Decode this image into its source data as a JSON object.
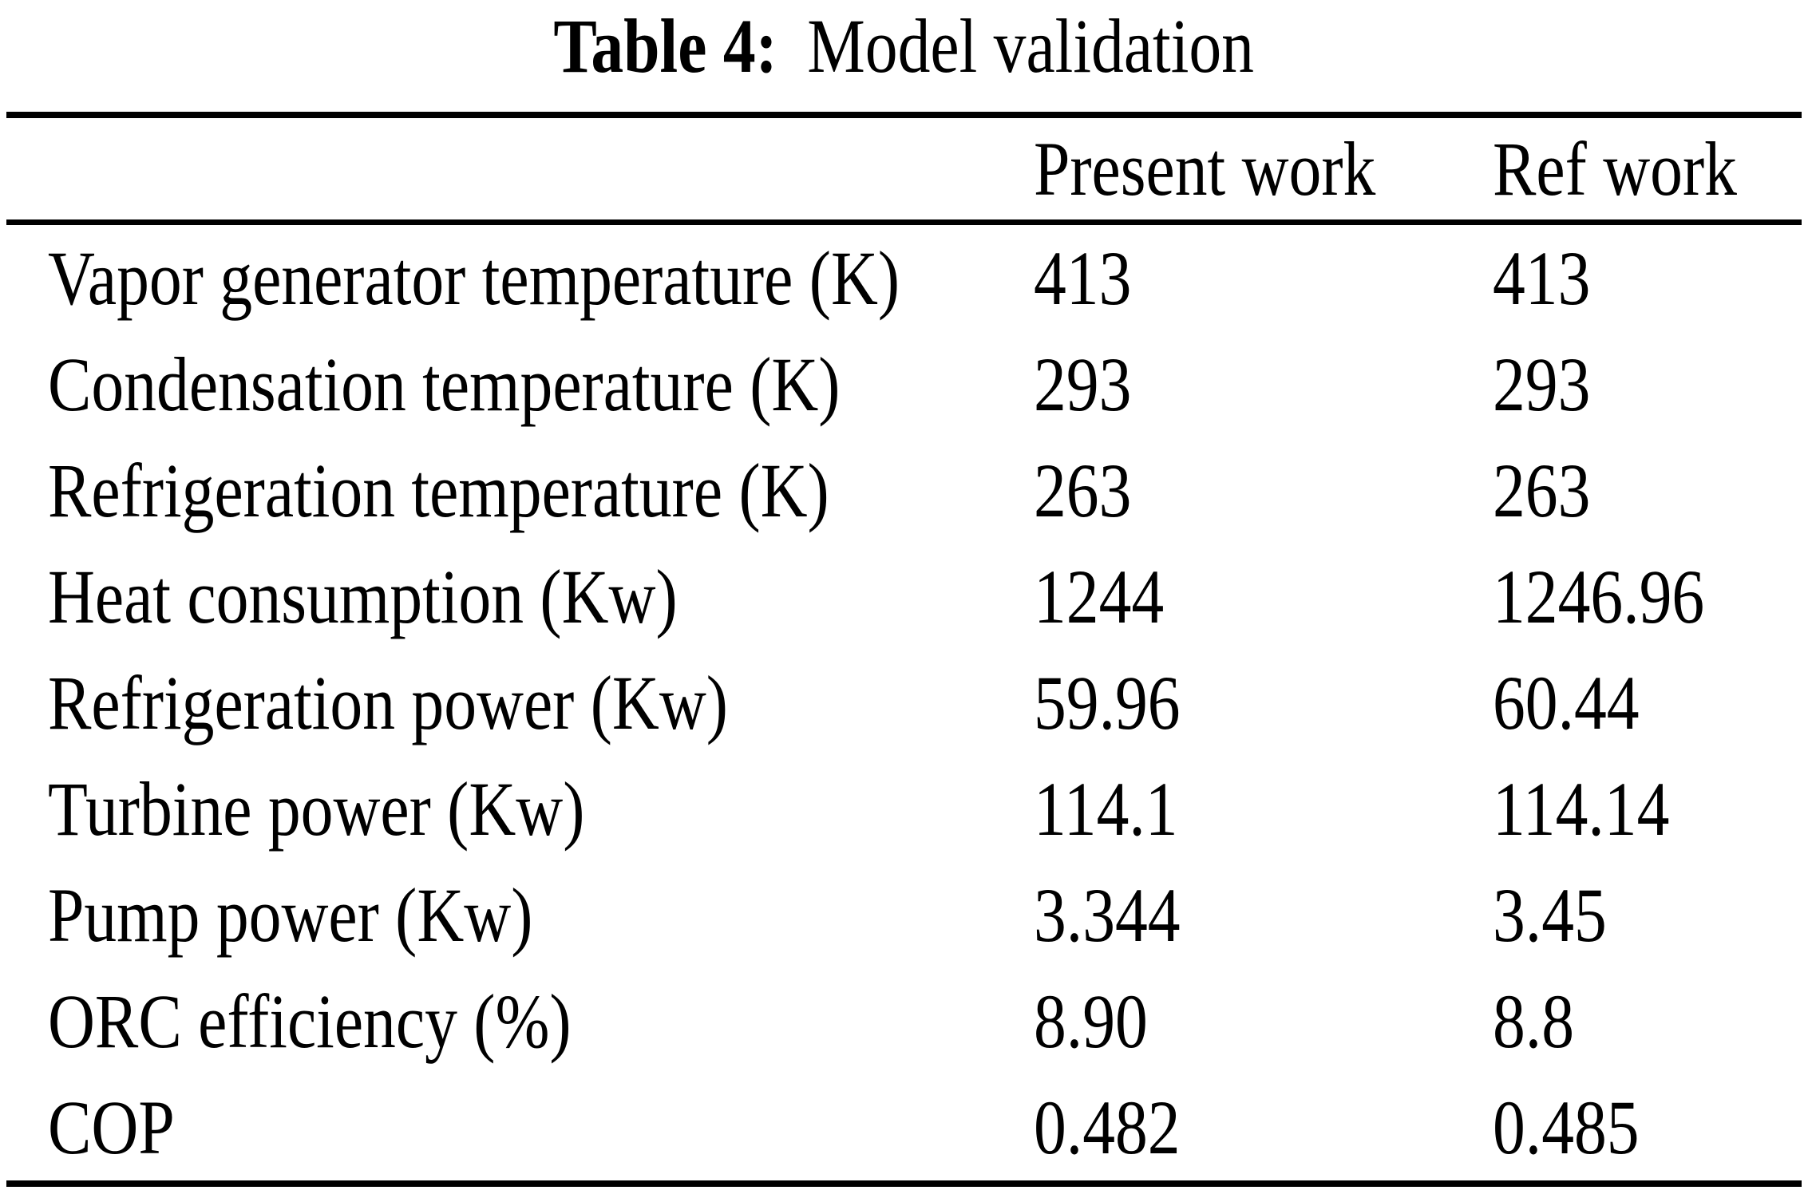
{
  "title": {
    "label": "Table 4:",
    "text": "Model validation"
  },
  "table": {
    "header": {
      "col1": "",
      "col2": "Present work",
      "col3": "Ref work"
    },
    "rows": [
      {
        "label": "Vapor generator temperature (K)",
        "present": "413",
        "ref": "413"
      },
      {
        "label": "Condensation temperature (K)",
        "present": "293",
        "ref": "293"
      },
      {
        "label": "Refrigeration temperature (K)",
        "present": "263",
        "ref": "263"
      },
      {
        "label": "Heat consumption (Kw)",
        "present": "1244",
        "ref": "1246.96"
      },
      {
        "label": "Refrigeration power (Kw)",
        "present": "59.96",
        "ref": "60.44"
      },
      {
        "label": "Turbine power (Kw)",
        "present": "114.1",
        "ref": "114.14"
      },
      {
        "label": "Pump power (Kw)",
        "present": "3.344",
        "ref": "3.45"
      },
      {
        "label": "ORC efficiency (%)",
        "present": "8.90",
        "ref": "8.8"
      },
      {
        "label": "COP",
        "present": "0.482",
        "ref": "0.485"
      }
    ]
  },
  "colors": {
    "text": "#000000",
    "background": "#ffffff",
    "rule": "#000000"
  }
}
